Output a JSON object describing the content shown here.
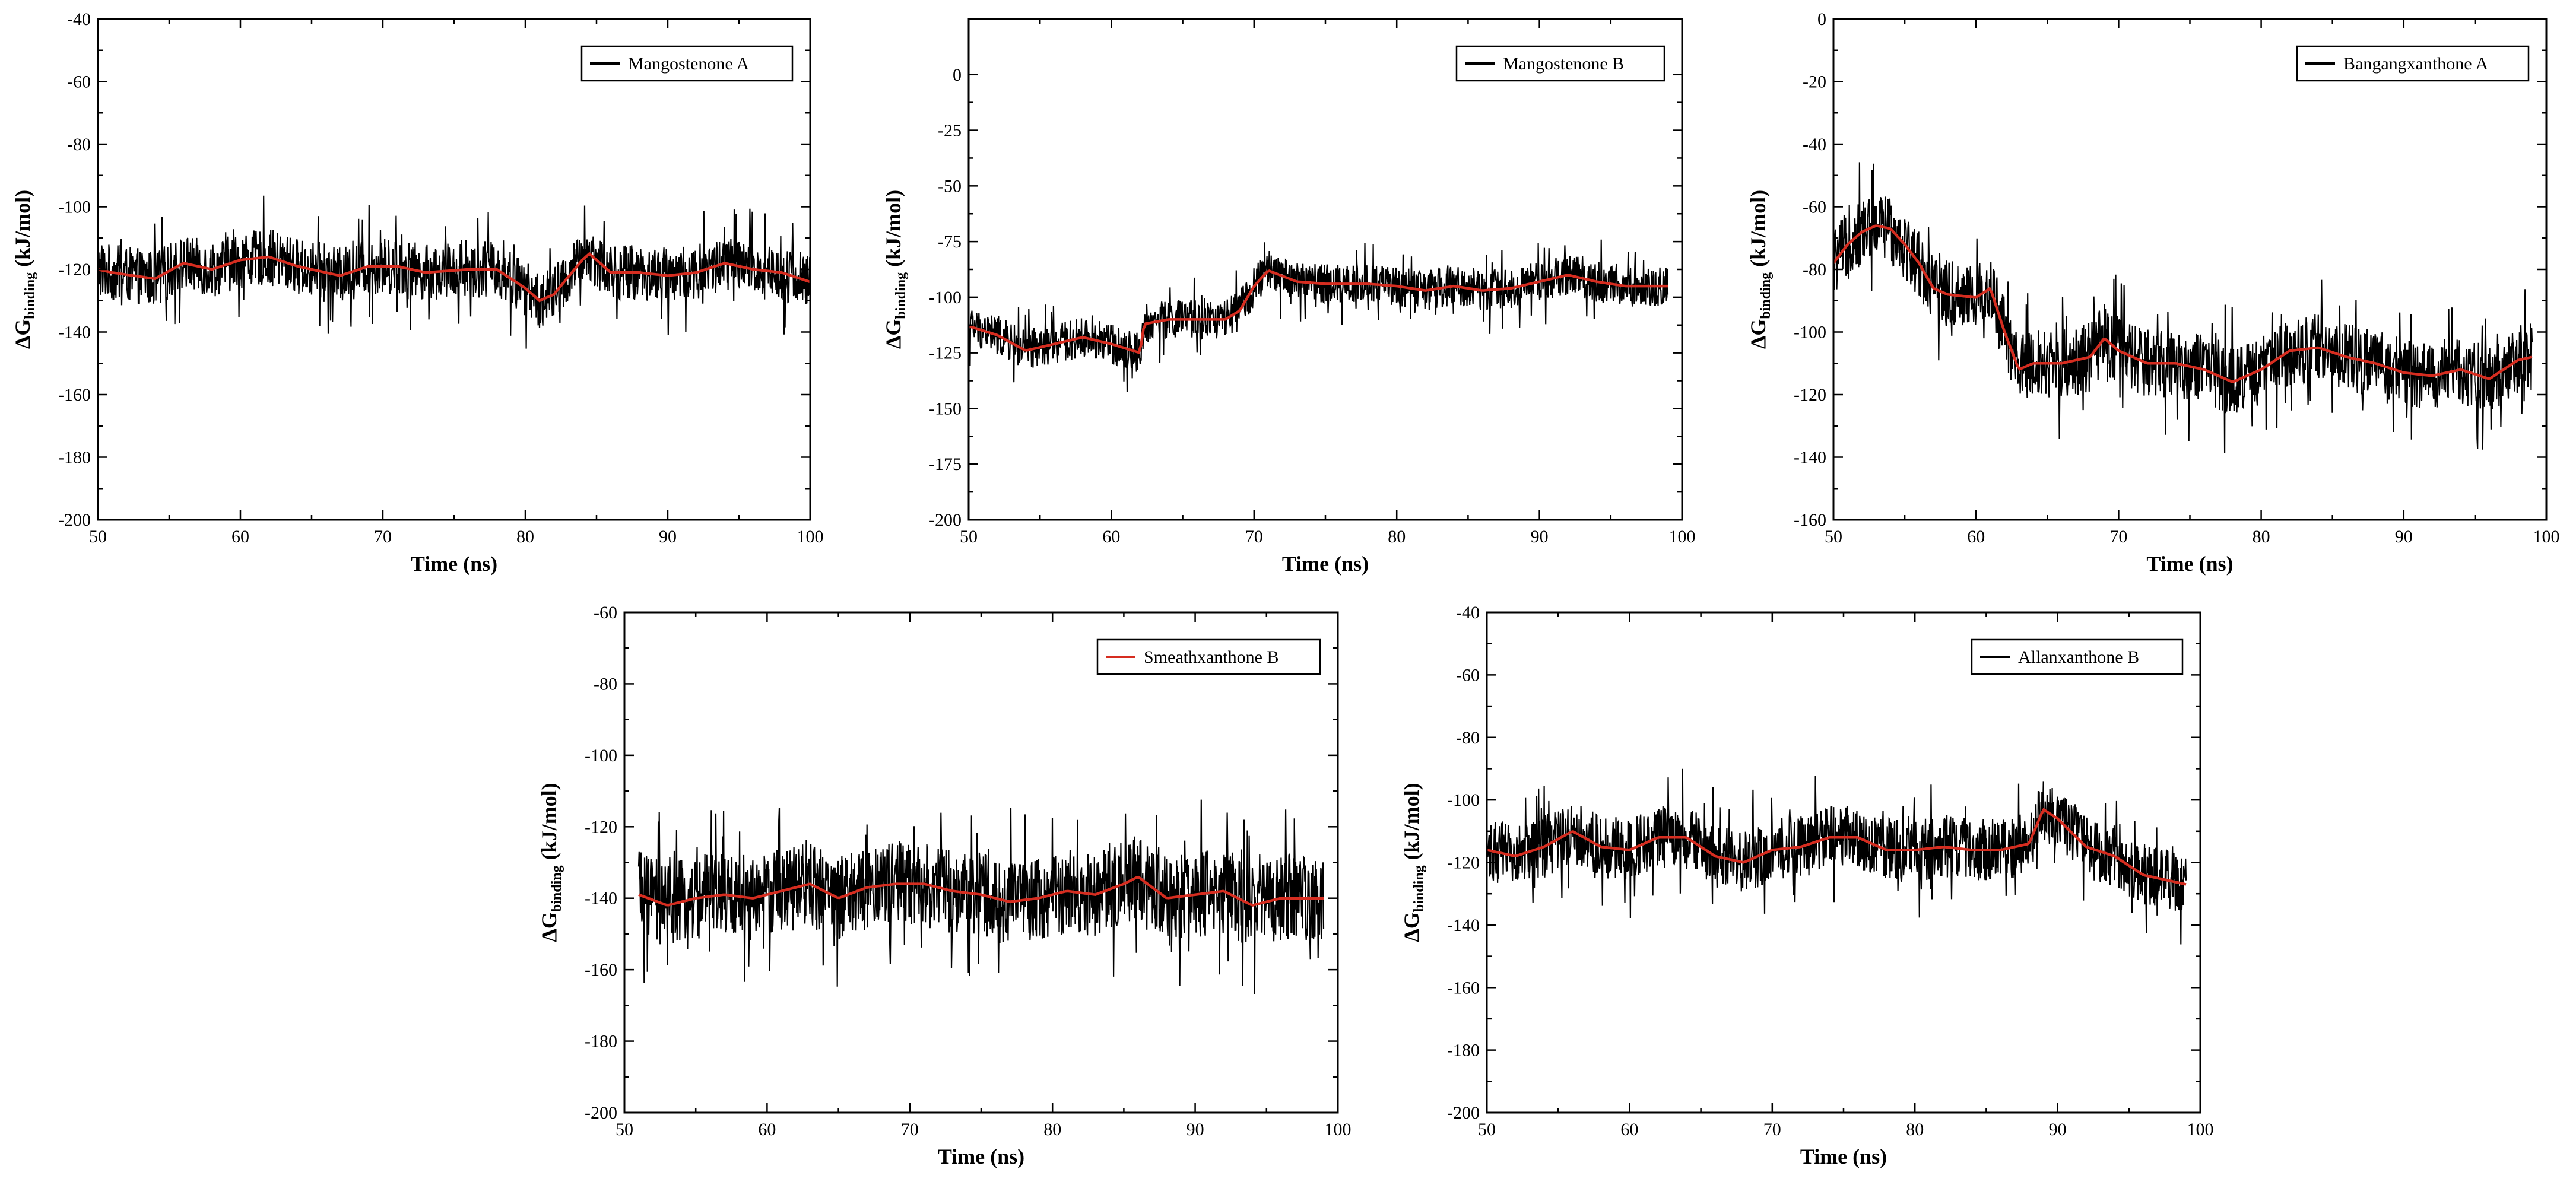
{
  "chart_data": [
    {
      "type": "line",
      "legend": "Mangostenone A",
      "xlabel": "Time (ns)",
      "ylabel_main": "ΔG",
      "ylabel_sub": "binding",
      "ylabel_unit": "(kJ/mol)",
      "xlim": [
        50,
        100
      ],
      "ylim": [
        -200,
        -40
      ],
      "xticks": [
        50,
        60,
        70,
        80,
        90,
        100
      ],
      "yticks": [
        -200,
        -180,
        -160,
        -140,
        -120,
        -100,
        -80,
        -60,
        -40
      ],
      "legend_position": "top-right",
      "series": [
        {
          "color": "#000000",
          "kind": "raw",
          "amplitude": 9,
          "x": [
            50,
            51,
            54,
            56,
            58,
            60,
            62,
            64,
            67,
            69,
            71,
            73,
            76,
            78,
            80,
            81,
            82,
            84,
            84.5,
            86,
            88,
            90,
            92,
            94,
            96,
            98,
            100
          ],
          "y": [
            -120,
            -121,
            -123,
            -118,
            -120,
            -117,
            -116,
            -119,
            -122,
            -119,
            -119,
            -121,
            -120,
            -120,
            -126,
            -130,
            -128,
            -117,
            -115,
            -121,
            -121,
            -122,
            -121,
            -118,
            -120,
            -121,
            -124
          ]
        },
        {
          "color": "#d62d20",
          "kind": "avg",
          "x": [
            50,
            51,
            54,
            56,
            58,
            60,
            62,
            64,
            67,
            69,
            71,
            73,
            76,
            78,
            80,
            81,
            82,
            84,
            84.5,
            86,
            88,
            90,
            92,
            94,
            96,
            98,
            100
          ],
          "y": [
            -120,
            -121,
            -123,
            -118,
            -120,
            -117,
            -116,
            -119,
            -122,
            -119,
            -119,
            -121,
            -120,
            -120,
            -126,
            -130,
            -128,
            -117,
            -115,
            -121,
            -121,
            -122,
            -121,
            -118,
            -120,
            -121,
            -124
          ]
        }
      ]
    },
    {
      "type": "line",
      "legend": "Mangostenone B",
      "xlabel": "Time (ns)",
      "ylabel_main": "ΔG",
      "ylabel_sub": "binding",
      "ylabel_unit": "(kJ/mol)",
      "xlim": [
        50,
        100
      ],
      "ylim": [
        -200,
        25
      ],
      "xticks": [
        50,
        60,
        70,
        80,
        90,
        100
      ],
      "yticks": [
        -200,
        -175,
        -150,
        -125,
        -100,
        -75,
        -50,
        -25,
        0
      ],
      "legend_position": "top-right",
      "series": [
        {
          "color": "#000000",
          "kind": "raw",
          "amplitude": 9,
          "x": [
            50,
            52,
            54,
            56,
            58,
            60,
            62,
            62.3,
            64,
            66,
            68,
            69,
            70,
            71,
            73,
            75,
            78,
            80,
            82,
            84,
            86,
            88,
            90,
            92,
            94,
            96,
            98,
            99
          ],
          "y": [
            -113,
            -117,
            -124,
            -121,
            -118,
            -121,
            -125,
            -112,
            -110,
            -110,
            -110,
            -106,
            -95,
            -88,
            -93,
            -94,
            -94,
            -95,
            -97,
            -95,
            -97,
            -96,
            -93,
            -90,
            -93,
            -95,
            -95,
            -95
          ]
        },
        {
          "color": "#d62d20",
          "kind": "avg",
          "x": [
            50,
            52,
            54,
            56,
            58,
            60,
            62,
            62.3,
            64,
            66,
            68,
            69,
            70,
            71,
            73,
            75,
            78,
            80,
            82,
            84,
            86,
            88,
            90,
            92,
            94,
            96,
            98,
            99
          ],
          "y": [
            -113,
            -117,
            -124,
            -121,
            -118,
            -121,
            -125,
            -112,
            -110,
            -110,
            -110,
            -106,
            -95,
            -88,
            -93,
            -94,
            -94,
            -95,
            -97,
            -95,
            -97,
            -96,
            -93,
            -90,
            -93,
            -95,
            -95,
            -95
          ]
        }
      ]
    },
    {
      "type": "line",
      "legend": "Bangangxanthone A",
      "xlabel": "Time (ns)",
      "ylabel_main": "ΔG",
      "ylabel_sub": "binding",
      "ylabel_unit": "(kJ/mol)",
      "xlim": [
        50,
        100
      ],
      "ylim": [
        -160,
        0
      ],
      "xticks": [
        50,
        60,
        70,
        80,
        90,
        100
      ],
      "yticks": [
        -160,
        -140,
        -120,
        -100,
        -80,
        -60,
        -40,
        -20,
        0
      ],
      "legend_position": "top-right",
      "series": [
        {
          "color": "#000000",
          "kind": "raw",
          "amplitude": 11,
          "x": [
            50,
            51,
            52,
            53,
            54,
            55,
            56,
            57,
            58,
            60,
            61,
            62,
            63,
            64,
            66,
            68,
            69,
            70,
            72,
            74,
            76,
            78,
            80,
            82,
            84,
            86,
            88,
            90,
            92,
            94,
            96,
            98,
            99
          ],
          "y": [
            -78,
            -72,
            -68,
            -66,
            -67,
            -72,
            -78,
            -86,
            -88,
            -89,
            -86,
            -100,
            -112,
            -110,
            -110,
            -108,
            -102,
            -106,
            -110,
            -110,
            -112,
            -116,
            -112,
            -106,
            -105,
            -108,
            -110,
            -113,
            -114,
            -112,
            -115,
            -109,
            -108
          ]
        },
        {
          "color": "#d62d20",
          "kind": "avg",
          "x": [
            50,
            51,
            52,
            53,
            54,
            55,
            56,
            57,
            58,
            60,
            61,
            62,
            63,
            64,
            66,
            68,
            69,
            70,
            72,
            74,
            76,
            78,
            80,
            82,
            84,
            86,
            88,
            90,
            92,
            94,
            96,
            98,
            99
          ],
          "y": [
            -78,
            -72,
            -68,
            -66,
            -67,
            -72,
            -78,
            -86,
            -88,
            -89,
            -86,
            -100,
            -112,
            -110,
            -110,
            -108,
            -102,
            -106,
            -110,
            -110,
            -112,
            -116,
            -112,
            -106,
            -105,
            -108,
            -110,
            -113,
            -114,
            -112,
            -115,
            -109,
            -108
          ]
        }
      ]
    },
    {
      "type": "line",
      "legend": "Smeathxanthone B",
      "xlabel": "Time (ns)",
      "ylabel_main": "ΔG",
      "ylabel_sub": "binding",
      "ylabel_unit": "(kJ/mol)",
      "xlim": [
        50,
        100
      ],
      "ylim": [
        -200,
        -60
      ],
      "xticks": [
        50,
        60,
        70,
        80,
        90,
        100
      ],
      "yticks": [
        -200,
        -180,
        -160,
        -140,
        -120,
        -100,
        -80,
        -60
      ],
      "legend_position": "top-right",
      "series": [
        {
          "color": "#000000",
          "kind": "raw",
          "amplitude": 12,
          "x": [
            51,
            53,
            55,
            57,
            59,
            61,
            63,
            65,
            67,
            69,
            71,
            73,
            75,
            77,
            79,
            81,
            83,
            85,
            86,
            88,
            90,
            92,
            94,
            96,
            98,
            99
          ],
          "y": [
            -139,
            -142,
            -140,
            -139,
            -140,
            -138,
            -136,
            -140,
            -137,
            -136,
            -136,
            -138,
            -139,
            -141,
            -140,
            -138,
            -139,
            -136,
            -134,
            -140,
            -139,
            -138,
            -142,
            -140,
            -140,
            -140
          ]
        },
        {
          "color": "#d62d20",
          "kind": "avg",
          "x": [
            51,
            53,
            55,
            57,
            59,
            61,
            63,
            65,
            67,
            69,
            71,
            73,
            75,
            77,
            79,
            81,
            83,
            85,
            86,
            88,
            90,
            92,
            94,
            96,
            98,
            99
          ],
          "y": [
            -139,
            -142,
            -140,
            -139,
            -140,
            -138,
            -136,
            -140,
            -137,
            -136,
            -136,
            -138,
            -139,
            -141,
            -140,
            -138,
            -139,
            -136,
            -134,
            -140,
            -139,
            -138,
            -142,
            -140,
            -140,
            -140
          ]
        }
      ]
    },
    {
      "type": "line",
      "legend": "Allanxanthone B",
      "xlabel": "Time (ns)",
      "ylabel_main": "ΔG",
      "ylabel_sub": "binding",
      "ylabel_unit": "(kJ/mol)",
      "xlim": [
        50,
        100
      ],
      "ylim": [
        -200,
        -40
      ],
      "xticks": [
        50,
        60,
        70,
        80,
        90,
        100
      ],
      "yticks": [
        -200,
        -180,
        -160,
        -140,
        -120,
        -100,
        -80,
        -60,
        -40
      ],
      "legend_position": "top-right",
      "series": [
        {
          "color": "#000000",
          "kind": "raw",
          "amplitude": 10,
          "x": [
            50,
            52,
            54,
            56,
            58,
            60,
            62,
            64,
            66,
            68,
            70,
            72,
            74,
            76,
            78,
            80,
            82,
            84,
            86,
            88,
            89,
            90,
            92,
            94,
            96,
            98,
            99
          ],
          "y": [
            -116,
            -118,
            -115,
            -110,
            -115,
            -116,
            -112,
            -112,
            -118,
            -120,
            -116,
            -115,
            -112,
            -112,
            -116,
            -116,
            -115,
            -116,
            -116,
            -114,
            -103,
            -106,
            -115,
            -118,
            -124,
            -126,
            -127
          ]
        },
        {
          "color": "#d62d20",
          "kind": "avg",
          "x": [
            50,
            52,
            54,
            56,
            58,
            60,
            62,
            64,
            66,
            68,
            70,
            72,
            74,
            76,
            78,
            80,
            82,
            84,
            86,
            88,
            89,
            90,
            92,
            94,
            96,
            98,
            99
          ],
          "y": [
            -116,
            -118,
            -115,
            -110,
            -115,
            -116,
            -112,
            -112,
            -118,
            -120,
            -116,
            -115,
            -112,
            -112,
            -116,
            -116,
            -115,
            -116,
            -116,
            -114,
            -103,
            -106,
            -115,
            -118,
            -124,
            -126,
            -127
          ]
        }
      ]
    }
  ]
}
